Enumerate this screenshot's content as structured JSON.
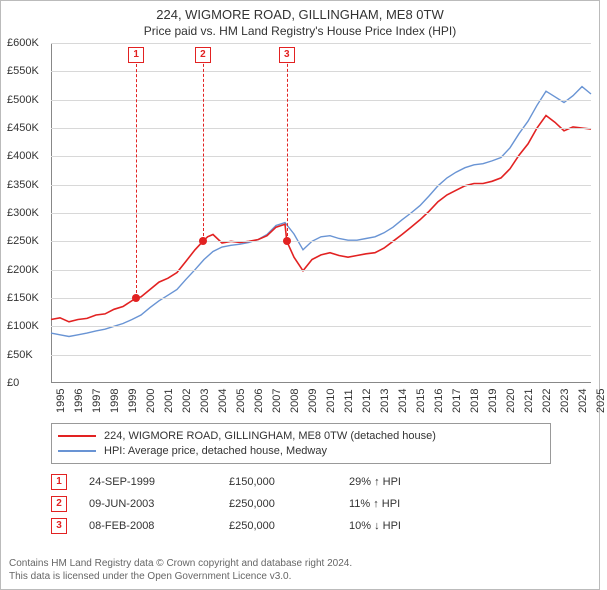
{
  "title_main": "224, WIGMORE ROAD, GILLINGHAM, ME8 0TW",
  "title_sub": "Price paid vs. HM Land Registry's House Price Index (HPI)",
  "chart": {
    "type": "line",
    "x_years": [
      1995,
      1996,
      1997,
      1998,
      1999,
      2000,
      2001,
      2002,
      2003,
      2004,
      2005,
      2006,
      2007,
      2008,
      2009,
      2010,
      2011,
      2012,
      2013,
      2014,
      2015,
      2016,
      2017,
      2018,
      2019,
      2020,
      2021,
      2022,
      2023,
      2024,
      2025
    ],
    "ylim": [
      0,
      600000
    ],
    "ytick_step": 50000,
    "ytick_labels": [
      "£0",
      "£50K",
      "£100K",
      "£150K",
      "£200K",
      "£250K",
      "£300K",
      "£350K",
      "£400K",
      "£450K",
      "£500K",
      "£550K",
      "£600K"
    ],
    "background_color": "#ffffff",
    "grid_color": "#d8d8d8",
    "axis_color": "#888888",
    "label_fontsize": 11,
    "series": [
      {
        "name": "property",
        "label": "224, WIGMORE ROAD, GILLINGHAM, ME8 0TW (detached house)",
        "color": "#e22222",
        "line_width": 1.6,
        "data": [
          [
            1995.0,
            112000
          ],
          [
            1995.5,
            115000
          ],
          [
            1996.0,
            108000
          ],
          [
            1996.5,
            112000
          ],
          [
            1997.0,
            114000
          ],
          [
            1997.5,
            120000
          ],
          [
            1998.0,
            122000
          ],
          [
            1998.5,
            130000
          ],
          [
            1999.0,
            135000
          ],
          [
            1999.73,
            150000
          ],
          [
            2000.0,
            152000
          ],
          [
            2000.5,
            165000
          ],
          [
            2001.0,
            178000
          ],
          [
            2001.5,
            185000
          ],
          [
            2002.0,
            195000
          ],
          [
            2002.5,
            215000
          ],
          [
            2003.0,
            235000
          ],
          [
            2003.44,
            250000
          ],
          [
            2003.7,
            258000
          ],
          [
            2004.0,
            262000
          ],
          [
            2004.5,
            247000
          ],
          [
            2005.0,
            250000
          ],
          [
            2005.5,
            248000
          ],
          [
            2006.0,
            250000
          ],
          [
            2006.5,
            253000
          ],
          [
            2007.0,
            260000
          ],
          [
            2007.5,
            275000
          ],
          [
            2008.0,
            280000
          ],
          [
            2008.1,
            250000
          ],
          [
            2008.5,
            222000
          ],
          [
            2009.0,
            198000
          ],
          [
            2009.5,
            218000
          ],
          [
            2010.0,
            226000
          ],
          [
            2010.5,
            230000
          ],
          [
            2011.0,
            225000
          ],
          [
            2011.5,
            222000
          ],
          [
            2012.0,
            225000
          ],
          [
            2012.5,
            228000
          ],
          [
            2013.0,
            230000
          ],
          [
            2013.5,
            238000
          ],
          [
            2014.0,
            250000
          ],
          [
            2014.5,
            262000
          ],
          [
            2015.0,
            275000
          ],
          [
            2015.5,
            288000
          ],
          [
            2016.0,
            303000
          ],
          [
            2016.5,
            320000
          ],
          [
            2017.0,
            332000
          ],
          [
            2017.5,
            340000
          ],
          [
            2018.0,
            348000
          ],
          [
            2018.5,
            352000
          ],
          [
            2019.0,
            352000
          ],
          [
            2019.5,
            356000
          ],
          [
            2020.0,
            362000
          ],
          [
            2020.5,
            378000
          ],
          [
            2021.0,
            402000
          ],
          [
            2021.5,
            422000
          ],
          [
            2022.0,
            450000
          ],
          [
            2022.5,
            472000
          ],
          [
            2023.0,
            460000
          ],
          [
            2023.5,
            445000
          ],
          [
            2024.0,
            452000
          ],
          [
            2024.5,
            450000
          ],
          [
            2025.0,
            448000
          ]
        ]
      },
      {
        "name": "hpi",
        "label": "HPI: Average price, detached house, Medway",
        "color": "#6994d4",
        "line_width": 1.4,
        "data": [
          [
            1995.0,
            88000
          ],
          [
            1995.5,
            85000
          ],
          [
            1996.0,
            82000
          ],
          [
            1996.5,
            85000
          ],
          [
            1997.0,
            88000
          ],
          [
            1997.5,
            92000
          ],
          [
            1998.0,
            95000
          ],
          [
            1998.5,
            100000
          ],
          [
            1999.0,
            105000
          ],
          [
            1999.5,
            112000
          ],
          [
            2000.0,
            120000
          ],
          [
            2000.5,
            133000
          ],
          [
            2001.0,
            145000
          ],
          [
            2001.5,
            155000
          ],
          [
            2002.0,
            165000
          ],
          [
            2002.5,
            183000
          ],
          [
            2003.0,
            200000
          ],
          [
            2003.5,
            218000
          ],
          [
            2004.0,
            232000
          ],
          [
            2004.5,
            240000
          ],
          [
            2005.0,
            243000
          ],
          [
            2005.5,
            245000
          ],
          [
            2006.0,
            248000
          ],
          [
            2006.5,
            253000
          ],
          [
            2007.0,
            262000
          ],
          [
            2007.5,
            278000
          ],
          [
            2008.0,
            283000
          ],
          [
            2008.5,
            263000
          ],
          [
            2009.0,
            235000
          ],
          [
            2009.5,
            250000
          ],
          [
            2010.0,
            258000
          ],
          [
            2010.5,
            260000
          ],
          [
            2011.0,
            255000
          ],
          [
            2011.5,
            252000
          ],
          [
            2012.0,
            252000
          ],
          [
            2012.5,
            255000
          ],
          [
            2013.0,
            258000
          ],
          [
            2013.5,
            265000
          ],
          [
            2014.0,
            275000
          ],
          [
            2014.5,
            288000
          ],
          [
            2015.0,
            300000
          ],
          [
            2015.5,
            313000
          ],
          [
            2016.0,
            330000
          ],
          [
            2016.5,
            348000
          ],
          [
            2017.0,
            362000
          ],
          [
            2017.5,
            372000
          ],
          [
            2018.0,
            380000
          ],
          [
            2018.5,
            385000
          ],
          [
            2019.0,
            387000
          ],
          [
            2019.5,
            392000
          ],
          [
            2020.0,
            398000
          ],
          [
            2020.5,
            415000
          ],
          [
            2021.0,
            440000
          ],
          [
            2021.5,
            462000
          ],
          [
            2022.0,
            490000
          ],
          [
            2022.5,
            515000
          ],
          [
            2023.0,
            505000
          ],
          [
            2023.5,
            495000
          ],
          [
            2024.0,
            507000
          ],
          [
            2024.5,
            523000
          ],
          [
            2025.0,
            510000
          ]
        ]
      }
    ],
    "transactions": [
      {
        "n": "1",
        "year": 1999.73,
        "price": 150000,
        "date": "24-SEP-1999",
        "price_str": "£150,000",
        "delta": "29% ↑ HPI"
      },
      {
        "n": "2",
        "year": 2003.44,
        "price": 250000,
        "date": "09-JUN-2003",
        "price_str": "£250,000",
        "delta": "11% ↑ HPI"
      },
      {
        "n": "3",
        "year": 2008.1,
        "price": 250000,
        "date": "08-FEB-2008",
        "price_str": "£250,000",
        "delta": "10% ↓ HPI"
      }
    ]
  },
  "legend": {
    "rows": [
      {
        "color": "#e22222",
        "text": "224, WIGMORE ROAD, GILLINGHAM, ME8 0TW (detached house)"
      },
      {
        "color": "#6994d4",
        "text": "HPI: Average price, detached house, Medway"
      }
    ]
  },
  "footer1": "Contains HM Land Registry data © Crown copyright and database right 2024.",
  "footer2": "This data is licensed under the Open Government Licence v3.0."
}
